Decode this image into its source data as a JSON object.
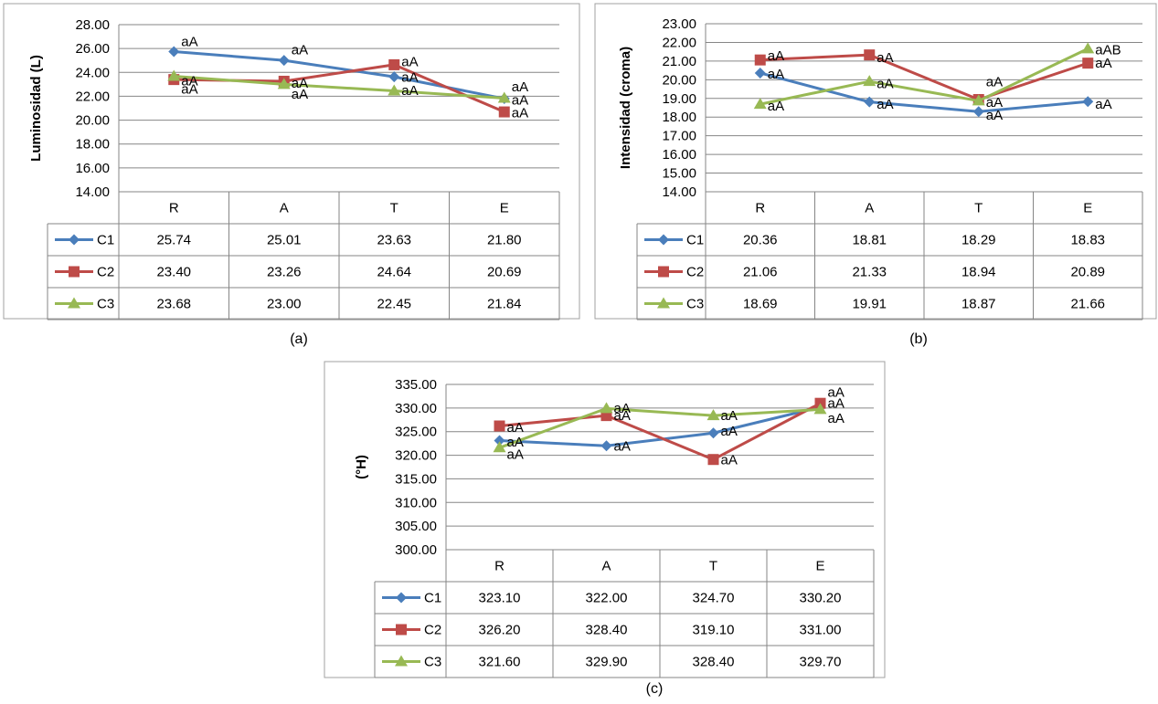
{
  "colors": {
    "C1": "#4a7ebb",
    "C2": "#be4b48",
    "C3": "#98b954",
    "grid": "#868686",
    "frame": "#a0a0a0"
  },
  "chart_data": [
    {
      "type": "line",
      "caption": "(a)",
      "ylabel": "Luminosidad (L)",
      "ylim": [
        14,
        28
      ],
      "ystep": 2,
      "ytick_labels": [
        "14.00",
        "16.00",
        "18.00",
        "20.00",
        "22.00",
        "24.00",
        "26.00",
        "28.00"
      ],
      "categories": [
        "R",
        "A",
        "T",
        "E"
      ],
      "series": [
        {
          "name": "C1",
          "marker": "diamond",
          "values": [
            25.74,
            25.01,
            23.63,
            21.8
          ],
          "labels": [
            "25.74",
            "25.01",
            "23.63",
            "21.80"
          ]
        },
        {
          "name": "C2",
          "marker": "square",
          "values": [
            23.4,
            23.26,
            24.64,
            20.69
          ],
          "labels": [
            "23.40",
            "23.26",
            "24.64",
            "20.69"
          ]
        },
        {
          "name": "C3",
          "marker": "triangle",
          "values": [
            23.68,
            23.0,
            22.45,
            21.84
          ],
          "labels": [
            "23.68",
            "23.00",
            "22.45",
            "21.84"
          ]
        }
      ],
      "annotations": [
        {
          "text": "aA",
          "category": "R",
          "y": 26.6
        },
        {
          "text": "aA",
          "category": "A",
          "y": 25.9
        },
        {
          "text": "aA",
          "category": "T",
          "y": 24.9
        },
        {
          "text": "aA",
          "category": "E",
          "y": 22.8
        },
        {
          "text": "aA",
          "category": "R",
          "y": 23.3
        },
        {
          "text": "aA",
          "category": "R",
          "y": 22.6
        },
        {
          "text": "aA",
          "category": "A",
          "y": 23.1
        },
        {
          "text": "aA",
          "category": "A",
          "y": 22.2
        },
        {
          "text": "aA",
          "category": "T",
          "y": 23.6
        },
        {
          "text": "aA",
          "category": "T",
          "y": 22.5
        },
        {
          "text": "aA",
          "category": "E",
          "y": 21.7
        },
        {
          "text": "aA",
          "category": "E",
          "y": 20.6
        }
      ],
      "grid": true,
      "legend": "data-table"
    },
    {
      "type": "line",
      "caption": "(b)",
      "ylabel": "Intensidad (croma)",
      "ylim": [
        14,
        23
      ],
      "ystep": 1,
      "ytick_labels": [
        "14.00",
        "15.00",
        "16.00",
        "17.00",
        "18.00",
        "19.00",
        "20.00",
        "21.00",
        "22.00",
        "23.00"
      ],
      "categories": [
        "R",
        "A",
        "T",
        "E"
      ],
      "series": [
        {
          "name": "C1",
          "marker": "diamond",
          "values": [
            20.36,
            18.81,
            18.29,
            18.83
          ],
          "labels": [
            "20.36",
            "18.81",
            "18.29",
            "18.83"
          ]
        },
        {
          "name": "C2",
          "marker": "square",
          "values": [
            21.06,
            21.33,
            18.94,
            20.89
          ],
          "labels": [
            "21.06",
            "21.33",
            "18.94",
            "20.89"
          ]
        },
        {
          "name": "C3",
          "marker": "triangle",
          "values": [
            18.69,
            19.91,
            18.87,
            21.66
          ],
          "labels": [
            "18.69",
            "19.91",
            "18.87",
            "21.66"
          ]
        }
      ],
      "annotations": [
        {
          "text": "aA",
          "category": "R",
          "y": 21.3
        },
        {
          "text": "aA",
          "category": "R",
          "y": 20.3
        },
        {
          "text": "aA",
          "category": "R",
          "y": 18.6
        },
        {
          "text": "aA",
          "category": "A",
          "y": 21.2
        },
        {
          "text": "aA",
          "category": "A",
          "y": 19.8
        },
        {
          "text": "aA",
          "category": "A",
          "y": 18.7
        },
        {
          "text": "aA",
          "category": "T",
          "y": 19.9
        },
        {
          "text": "aA",
          "category": "T",
          "y": 18.8
        },
        {
          "text": "aA",
          "category": "T",
          "y": 18.1
        },
        {
          "text": "aAB",
          "category": "E",
          "y": 21.6
        },
        {
          "text": "aA",
          "category": "E",
          "y": 20.9
        },
        {
          "text": "aA",
          "category": "E",
          "y": 18.7
        }
      ],
      "grid": true,
      "legend": "data-table"
    },
    {
      "type": "line",
      "caption": "(c)",
      "ylabel": "(°H)",
      "ylim": [
        300,
        335
      ],
      "ystep": 5,
      "ytick_labels": [
        "300.00",
        "305.00",
        "310.00",
        "315.00",
        "320.00",
        "325.00",
        "330.00",
        "335.00"
      ],
      "categories": [
        "R",
        "A",
        "T",
        "E"
      ],
      "series": [
        {
          "name": "C1",
          "marker": "diamond",
          "values": [
            323.1,
            322.0,
            324.7,
            330.2
          ],
          "labels": [
            "323.10",
            "322.00",
            "324.70",
            "330.20"
          ]
        },
        {
          "name": "C2",
          "marker": "square",
          "values": [
            326.2,
            328.4,
            319.1,
            331.0
          ],
          "labels": [
            "326.20",
            "328.40",
            "319.10",
            "331.00"
          ]
        },
        {
          "name": "C3",
          "marker": "triangle",
          "values": [
            321.6,
            329.9,
            328.4,
            329.7
          ],
          "labels": [
            "321.60",
            "329.90",
            "328.40",
            "329.70"
          ]
        }
      ],
      "annotations": [
        {
          "text": "aA",
          "category": "R",
          "y": 325.9
        },
        {
          "text": "aA",
          "category": "R",
          "y": 322.8
        },
        {
          "text": "aA",
          "category": "R",
          "y": 320.2
        },
        {
          "text": "aA",
          "category": "A",
          "y": 330.0
        },
        {
          "text": "aA",
          "category": "A",
          "y": 328.4
        },
        {
          "text": "aA",
          "category": "A",
          "y": 321.9
        },
        {
          "text": "aA",
          "category": "T",
          "y": 328.4
        },
        {
          "text": "aA",
          "category": "T",
          "y": 325.1
        },
        {
          "text": "aA",
          "category": "T",
          "y": 319.0
        },
        {
          "text": "aA",
          "category": "E",
          "y": 333.4
        },
        {
          "text": "aA",
          "category": "E",
          "y": 331.0
        },
        {
          "text": "aA",
          "category": "E",
          "y": 327.8
        }
      ],
      "grid": true,
      "legend": "data-table"
    }
  ]
}
